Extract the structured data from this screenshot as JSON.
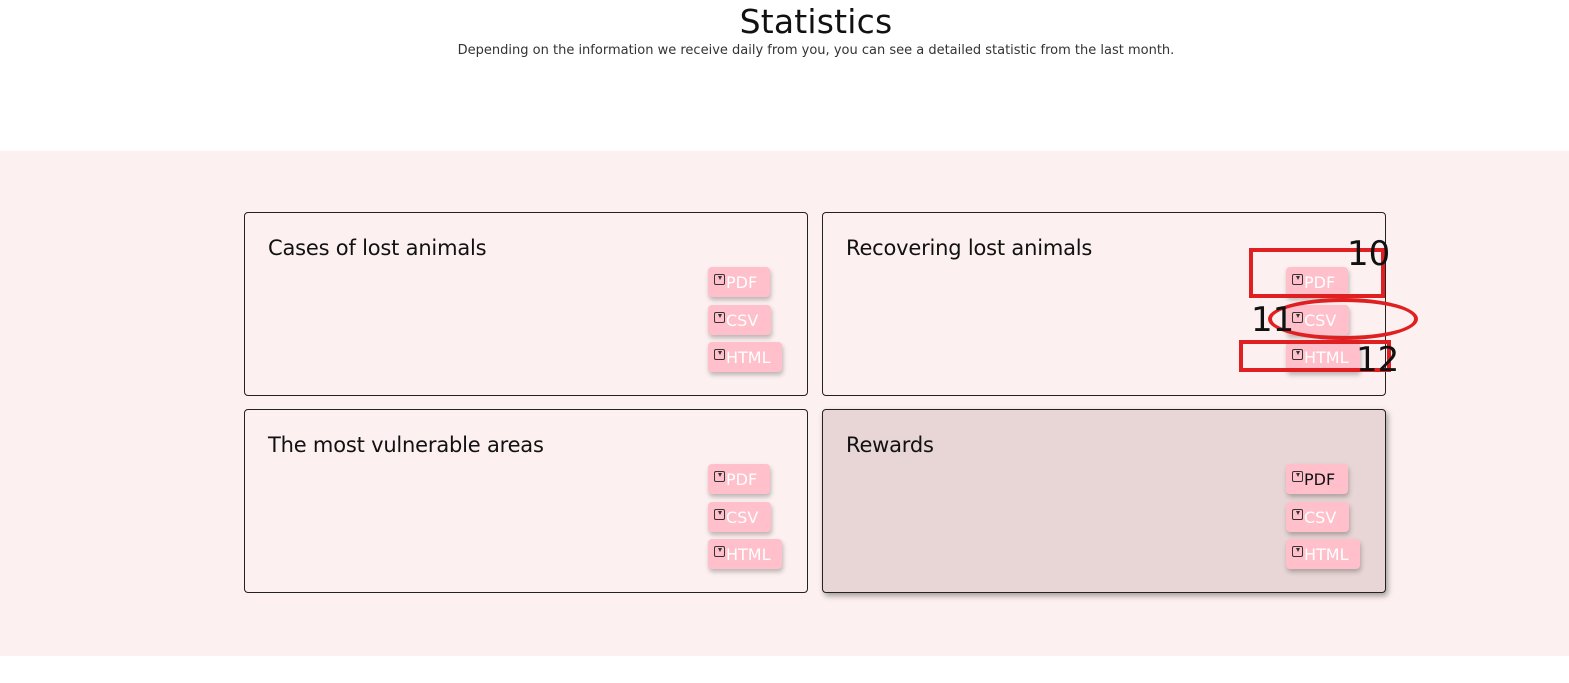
{
  "header": {
    "title": "Statistics",
    "subtitle": "Depending on the information we receive daily from you, you can see a detailed statistic from the last month."
  },
  "cards": [
    {
      "title": "Cases of lost animals",
      "buttons": {
        "pdf": "PDF",
        "csv": "CSV",
        "html": "HTML"
      }
    },
    {
      "title": "Recovering lost animals",
      "buttons": {
        "pdf": "PDF",
        "csv": "CSV",
        "html": "HTML"
      }
    },
    {
      "title": "The most vulnerable areas",
      "buttons": {
        "pdf": "PDF",
        "csv": "CSV",
        "html": "HTML"
      }
    },
    {
      "title": "Rewards",
      "buttons": {
        "pdf": "PDF",
        "csv": "CSV",
        "html": "HTML"
      }
    }
  ],
  "annotations": {
    "pdf_marker": "10",
    "csv_marker": "11",
    "html_marker": "12"
  },
  "colors": {
    "band_background": "#fcf0f0",
    "button_background": "#ffc0cb",
    "hover_card_background": "#e8d6d6",
    "annotation": "#e02020"
  },
  "icons": {
    "download": "download-icon"
  }
}
